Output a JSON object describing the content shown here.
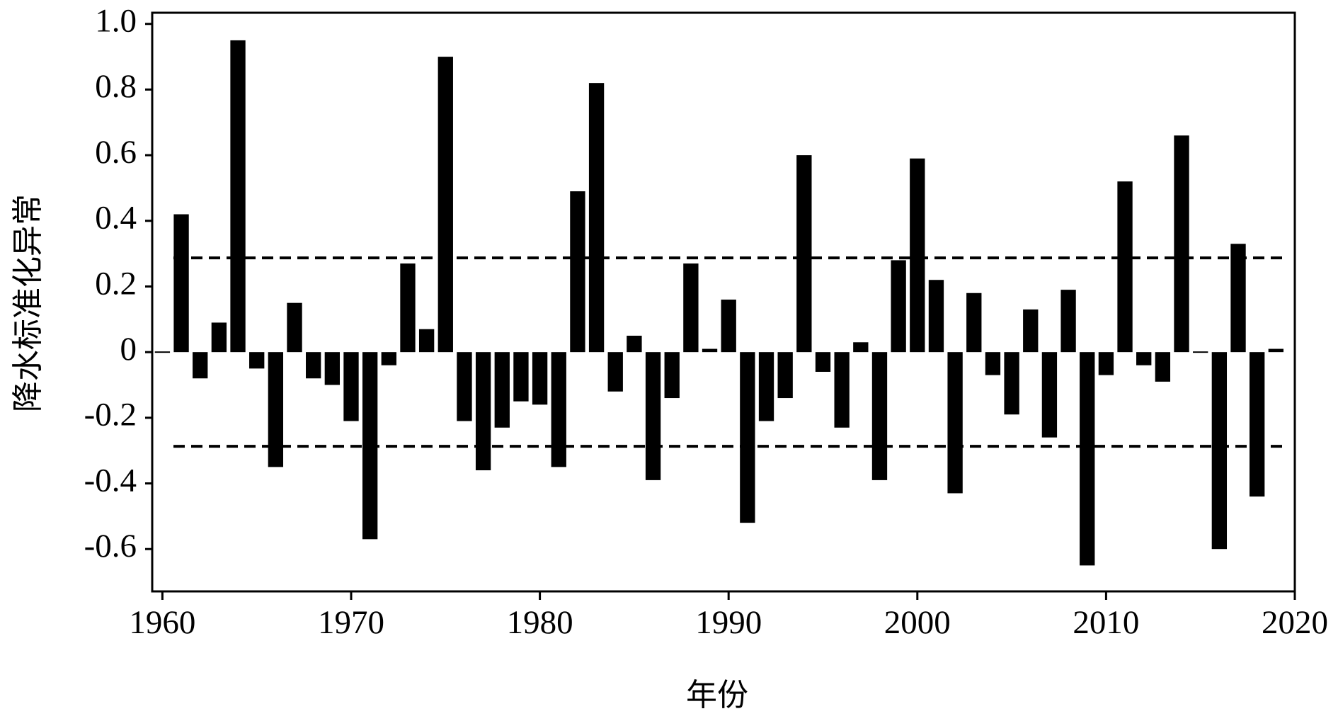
{
  "chart_data": {
    "type": "bar",
    "x_label": "年份",
    "y_label": "降水标准化异常",
    "x": [
      1960,
      1961,
      1962,
      1963,
      1964,
      1965,
      1966,
      1967,
      1968,
      1969,
      1970,
      1971,
      1972,
      1973,
      1974,
      1975,
      1976,
      1977,
      1978,
      1979,
      1980,
      1981,
      1982,
      1983,
      1984,
      1985,
      1986,
      1987,
      1988,
      1989,
      1990,
      1991,
      1992,
      1993,
      1994,
      1995,
      1996,
      1997,
      1998,
      1999,
      2000,
      2001,
      2002,
      2003,
      2004,
      2005,
      2006,
      2007,
      2008,
      2009,
      2010,
      2011,
      2012,
      2013,
      2014,
      2015,
      2016,
      2017,
      2018,
      2019
    ],
    "values": [
      0,
      0.42,
      -0.08,
      0.09,
      0.95,
      -0.05,
      -0.35,
      0.15,
      -0.08,
      -0.1,
      -0.21,
      -0.57,
      -0.04,
      0.27,
      0.07,
      0.9,
      -0.21,
      -0.36,
      -0.23,
      -0.15,
      -0.16,
      -0.35,
      0.49,
      0.82,
      -0.12,
      0.05,
      -0.39,
      -0.14,
      0.27,
      0.01,
      0.16,
      -0.52,
      -0.21,
      -0.14,
      0.6,
      -0.06,
      -0.23,
      0.03,
      -0.39,
      0.28,
      0.59,
      0.22,
      -0.43,
      0.18,
      -0.07,
      -0.19,
      0.13,
      -0.26,
      0.19,
      -0.65,
      -0.07,
      0.52,
      -0.04,
      -0.09,
      0.66,
      0,
      -0.6,
      0.33,
      -0.44,
      0.01
    ],
    "color": "#000000",
    "reference_lines": [
      0.287,
      -0.287
    ],
    "xlim": [
      1959.46,
      2020
    ],
    "xticks": [
      1960,
      1970,
      1980,
      1990,
      2000,
      2010,
      2020
    ],
    "ylim": [
      -0.729,
      1.034
    ],
    "yticks": [
      -0.6,
      -0.4,
      -0.2,
      0,
      0.2,
      0.4,
      0.6,
      0.8,
      {
        "value": 1,
        "label": "1.0"
      }
    ],
    "grid": false
  }
}
